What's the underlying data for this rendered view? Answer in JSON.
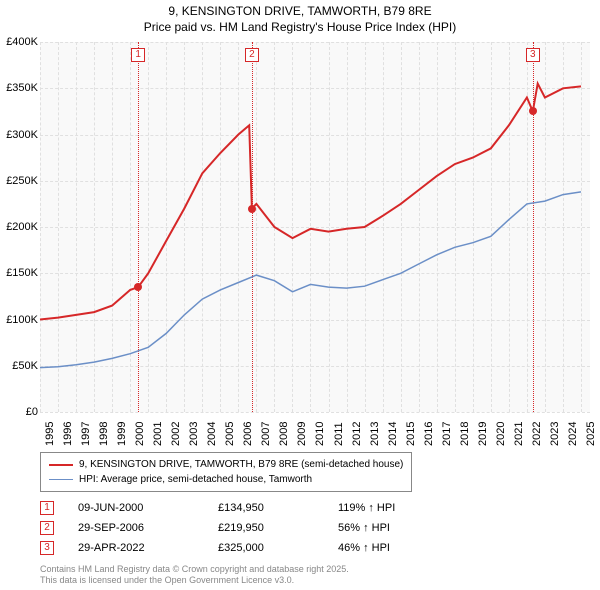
{
  "title": {
    "line1": "9, KENSINGTON DRIVE, TAMWORTH, B79 8RE",
    "line2": "Price paid vs. HM Land Registry's House Price Index (HPI)",
    "fontsize": 12,
    "color": "#000000"
  },
  "chart": {
    "type": "line",
    "background_color": "#f9f9f9",
    "grid_color": "#e0e0e0",
    "x": {
      "min": 1995,
      "max": 2025.5,
      "ticks": [
        1995,
        1996,
        1997,
        1998,
        1999,
        2000,
        2001,
        2002,
        2003,
        2004,
        2005,
        2006,
        2007,
        2008,
        2009,
        2010,
        2011,
        2012,
        2013,
        2014,
        2015,
        2016,
        2017,
        2018,
        2019,
        2020,
        2021,
        2022,
        2023,
        2024,
        2025
      ],
      "tick_fontsize": 11,
      "rotation": -90
    },
    "y": {
      "min": 0,
      "max": 400000,
      "ticks": [
        0,
        50000,
        100000,
        150000,
        200000,
        250000,
        300000,
        350000,
        400000
      ],
      "tick_labels": [
        "£0",
        "£50K",
        "£100K",
        "£150K",
        "£200K",
        "£250K",
        "£300K",
        "£350K",
        "£400K"
      ],
      "tick_fontsize": 11
    },
    "series": [
      {
        "name": "property",
        "label": "9, KENSINGTON DRIVE, TAMWORTH, B79 8RE (semi-detached house)",
        "color": "#d62728",
        "line_width": 2,
        "points": [
          [
            1995,
            100000
          ],
          [
            1996,
            102000
          ],
          [
            1997,
            105000
          ],
          [
            1998,
            108000
          ],
          [
            1999,
            115000
          ],
          [
            2000,
            132000
          ],
          [
            2000.44,
            134950
          ],
          [
            2001,
            150000
          ],
          [
            2002,
            185000
          ],
          [
            2003,
            220000
          ],
          [
            2004,
            258000
          ],
          [
            2005,
            280000
          ],
          [
            2006,
            300000
          ],
          [
            2006.6,
            310000
          ],
          [
            2006.75,
            219950
          ],
          [
            2007,
            225000
          ],
          [
            2008,
            200000
          ],
          [
            2009,
            188000
          ],
          [
            2010,
            198000
          ],
          [
            2011,
            195000
          ],
          [
            2012,
            198000
          ],
          [
            2013,
            200000
          ],
          [
            2014,
            212000
          ],
          [
            2015,
            225000
          ],
          [
            2016,
            240000
          ],
          [
            2017,
            255000
          ],
          [
            2018,
            268000
          ],
          [
            2019,
            275000
          ],
          [
            2020,
            285000
          ],
          [
            2021,
            310000
          ],
          [
            2022,
            340000
          ],
          [
            2022.33,
            325000
          ],
          [
            2022.6,
            355000
          ],
          [
            2023,
            340000
          ],
          [
            2024,
            350000
          ],
          [
            2025,
            352000
          ]
        ]
      },
      {
        "name": "hpi",
        "label": "HPI: Average price, semi-detached house, Tamworth",
        "color": "#6b8fc7",
        "line_width": 1.5,
        "points": [
          [
            1995,
            48000
          ],
          [
            1996,
            49000
          ],
          [
            1997,
            51000
          ],
          [
            1998,
            54000
          ],
          [
            1999,
            58000
          ],
          [
            2000,
            63000
          ],
          [
            2001,
            70000
          ],
          [
            2002,
            85000
          ],
          [
            2003,
            105000
          ],
          [
            2004,
            122000
          ],
          [
            2005,
            132000
          ],
          [
            2006,
            140000
          ],
          [
            2007,
            148000
          ],
          [
            2008,
            142000
          ],
          [
            2009,
            130000
          ],
          [
            2010,
            138000
          ],
          [
            2011,
            135000
          ],
          [
            2012,
            134000
          ],
          [
            2013,
            136000
          ],
          [
            2014,
            143000
          ],
          [
            2015,
            150000
          ],
          [
            2016,
            160000
          ],
          [
            2017,
            170000
          ],
          [
            2018,
            178000
          ],
          [
            2019,
            183000
          ],
          [
            2020,
            190000
          ],
          [
            2021,
            208000
          ],
          [
            2022,
            225000
          ],
          [
            2023,
            228000
          ],
          [
            2024,
            235000
          ],
          [
            2025,
            238000
          ]
        ]
      }
    ],
    "markers": [
      {
        "id": "1",
        "x": 2000.44,
        "y": 134950,
        "color": "#d62728"
      },
      {
        "id": "2",
        "x": 2006.75,
        "y": 219950,
        "color": "#d62728"
      },
      {
        "id": "3",
        "x": 2022.33,
        "y": 325000,
        "color": "#d62728"
      }
    ]
  },
  "legend": {
    "border_color": "#888888",
    "fontsize": 10,
    "items": [
      {
        "color": "#d62728",
        "width": 2,
        "label": "9, KENSINGTON DRIVE, TAMWORTH, B79 8RE (semi-detached house)"
      },
      {
        "color": "#6b8fc7",
        "width": 1.5,
        "label": "HPI: Average price, semi-detached house, Tamworth"
      }
    ]
  },
  "sales": [
    {
      "id": "1",
      "date": "09-JUN-2000",
      "price": "£134,950",
      "hpi": "119% ↑ HPI"
    },
    {
      "id": "2",
      "date": "29-SEP-2006",
      "price": "£219,950",
      "hpi": "56% ↑ HPI"
    },
    {
      "id": "3",
      "date": "29-APR-2022",
      "price": "£325,000",
      "hpi": "46% ↑ HPI"
    }
  ],
  "footer": {
    "line1": "Contains HM Land Registry data © Crown copyright and database right 2025.",
    "line2": "This data is licensed under the Open Government Licence v3.0.",
    "color": "#888888",
    "fontsize": 9
  }
}
